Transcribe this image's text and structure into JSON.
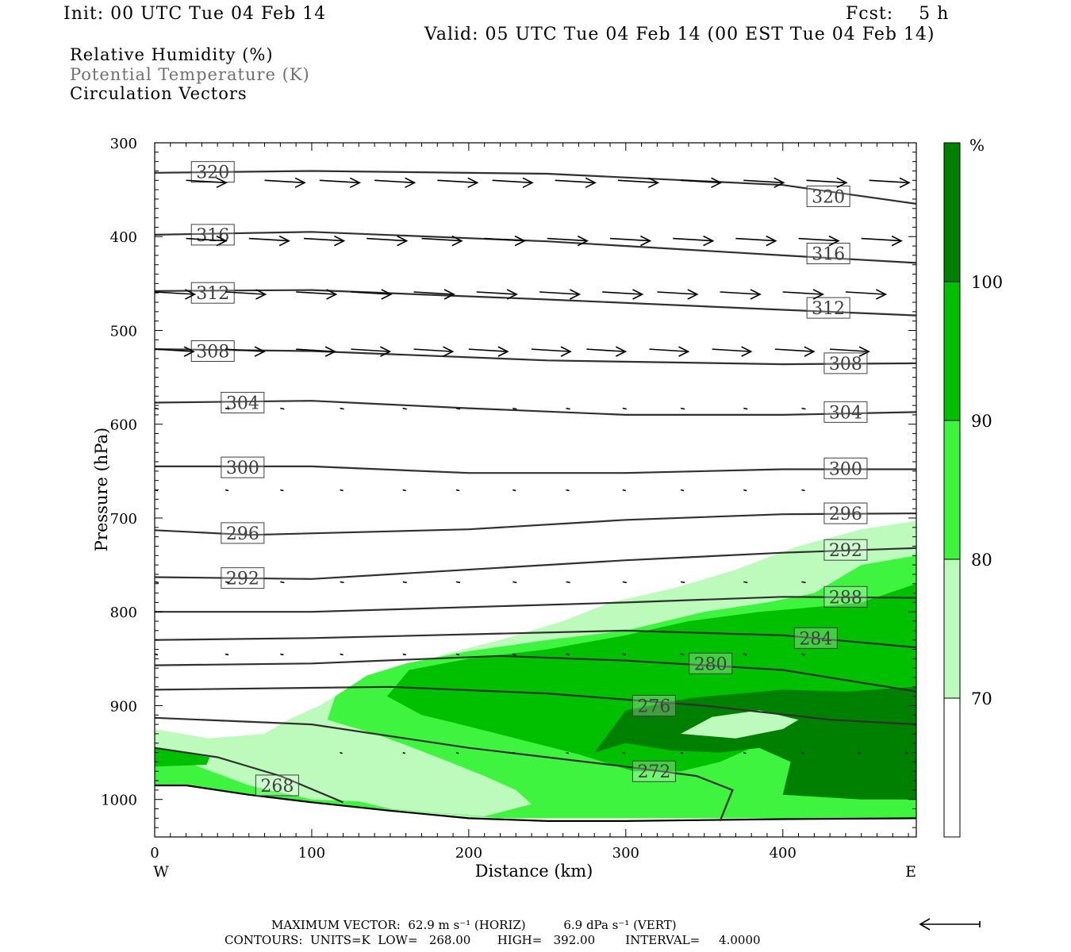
{
  "header": {
    "init": "Init: 00 UTC Tue 04 Feb 14",
    "fcst": "Fcst:    5 h",
    "valid": "Valid: 05 UTC Tue 04 Feb 14 (00 EST Tue 04 Feb 14)"
  },
  "legend": {
    "line1": "Relative Humidity (%)",
    "line2": "Potential Temperature (K)",
    "line3": "Circulation Vectors",
    "line2_color": "#707070"
  },
  "footer": {
    "max_vector": "MAXIMUM VECTOR:  62.9 m s⁻¹ (HORIZ)          6.9 dPa s⁻¹ (VERT)",
    "contours": "CONTOURS:  UNITS=K  LOW=   268.00       HIGH=   392.00        INTERVAL=     4.0000"
  },
  "chart_data": {
    "type": "cross-section",
    "xlabel": "Distance (km)",
    "ylabel": "Pressure (hPa)",
    "xlim": [
      0,
      485
    ],
    "ylim": [
      1040,
      300
    ],
    "x_ticks": [
      0,
      100,
      200,
      300,
      400
    ],
    "y_ticks": [
      300,
      400,
      500,
      600,
      700,
      800,
      900,
      1000
    ],
    "x_end_labels": {
      "left": "W",
      "right": "E"
    },
    "colorbar": {
      "unit": "%",
      "levels": [
        70,
        80,
        90,
        100
      ],
      "colors": [
        "#ffffff",
        "#bdfbbd",
        "#3ff43f",
        "#00c000",
        "#008000"
      ]
    },
    "terrain": [
      [
        0,
        985
      ],
      [
        20,
        985
      ],
      [
        60,
        995
      ],
      [
        100,
        1003
      ],
      [
        150,
        1012
      ],
      [
        200,
        1020
      ],
      [
        250,
        1023
      ],
      [
        300,
        1023
      ],
      [
        350,
        1022
      ],
      [
        400,
        1021
      ],
      [
        485,
        1020
      ]
    ],
    "rh_fill": {
      "rh70": [
        [
          0,
          925
        ],
        [
          35,
          935
        ],
        [
          70,
          930
        ],
        [
          85,
          915
        ],
        [
          105,
          900
        ],
        [
          125,
          880
        ],
        [
          150,
          863
        ],
        [
          185,
          845
        ],
        [
          220,
          830
        ],
        [
          260,
          810
        ],
        [
          290,
          790
        ],
        [
          330,
          775
        ],
        [
          370,
          755
        ],
        [
          410,
          730
        ],
        [
          450,
          712
        ],
        [
          485,
          703
        ],
        [
          485,
          1020
        ],
        [
          0,
          1020
        ]
      ],
      "rh80": [
        [
          0,
          945
        ],
        [
          20,
          960
        ],
        [
          60,
          985
        ],
        [
          100,
          1000
        ],
        [
          130,
          1002
        ],
        [
          150,
          1010
        ],
        [
          185,
          1015
        ],
        [
          210,
          1018
        ],
        [
          240,
          1005
        ],
        [
          230,
          990
        ],
        [
          210,
          975
        ],
        [
          180,
          955
        ],
        [
          160,
          942
        ],
        [
          140,
          930
        ],
        [
          110,
          915
        ],
        [
          115,
          890
        ],
        [
          135,
          868
        ],
        [
          160,
          855
        ],
        [
          200,
          842
        ],
        [
          250,
          830
        ],
        [
          300,
          820
        ],
        [
          350,
          800
        ],
        [
          390,
          790
        ],
        [
          420,
          780
        ],
        [
          450,
          750
        ],
        [
          485,
          740
        ],
        [
          485,
          1020
        ],
        [
          220,
          1020
        ],
        [
          0,
          990
        ]
      ],
      "rh90": [
        [
          148,
          890
        ],
        [
          162,
          862
        ],
        [
          200,
          850
        ],
        [
          250,
          840
        ],
        [
          300,
          825
        ],
        [
          340,
          810
        ],
        [
          385,
          800
        ],
        [
          420,
          795
        ],
        [
          450,
          790
        ],
        [
          485,
          770
        ],
        [
          485,
          885
        ],
        [
          460,
          895
        ],
        [
          420,
          912
        ],
        [
          400,
          930
        ],
        [
          380,
          945
        ],
        [
          360,
          960
        ],
        [
          335,
          970
        ],
        [
          305,
          970
        ],
        [
          270,
          952
        ],
        [
          230,
          935
        ],
        [
          190,
          918
        ],
        [
          170,
          910
        ]
      ],
      "rh100": [
        [
          280,
          950
        ],
        [
          300,
          905
        ],
        [
          340,
          892
        ],
        [
          400,
          883
        ],
        [
          440,
          885
        ],
        [
          485,
          880
        ],
        [
          485,
          1000
        ],
        [
          450,
          1000
        ],
        [
          400,
          995
        ],
        [
          405,
          960
        ],
        [
          385,
          945
        ],
        [
          360,
          950
        ],
        [
          330,
          948
        ],
        [
          300,
          940
        ]
      ],
      "rh100b": [
        [
          0,
          945
        ],
        [
          35,
          955
        ],
        [
          33,
          963
        ],
        [
          0,
          965
        ]
      ],
      "rh70_island": [
        [
          335,
          930
        ],
        [
          355,
          912
        ],
        [
          385,
          905
        ],
        [
          410,
          915
        ],
        [
          400,
          925
        ],
        [
          370,
          935
        ]
      ]
    },
    "theta_contours": [
      {
        "label": "320",
        "pts": [
          [
            0,
            332
          ],
          [
            100,
            330
          ],
          [
            250,
            333
          ],
          [
            400,
            345
          ],
          [
            485,
            365
          ]
        ],
        "lab": [
          [
            37,
            331
          ],
          [
            429,
            357
          ]
        ]
      },
      {
        "label": "316",
        "pts": [
          [
            0,
            398
          ],
          [
            100,
            395
          ],
          [
            250,
            405
          ],
          [
            400,
            420
          ],
          [
            485,
            428
          ]
        ],
        "lab": [
          [
            37,
            398
          ],
          [
            429,
            418
          ]
        ]
      },
      {
        "label": "312",
        "pts": [
          [
            0,
            458
          ],
          [
            100,
            457
          ],
          [
            250,
            467
          ],
          [
            400,
            478
          ],
          [
            485,
            484
          ]
        ],
        "lab": [
          [
            37,
            460
          ],
          [
            429,
            476
          ]
        ]
      },
      {
        "label": "308",
        "pts": [
          [
            0,
            520
          ],
          [
            100,
            522
          ],
          [
            250,
            532
          ],
          [
            400,
            536
          ],
          [
            485,
            535
          ]
        ],
        "lab": [
          [
            37,
            522
          ],
          [
            440,
            535
          ]
        ]
      },
      {
        "label": "304",
        "pts": [
          [
            0,
            577
          ],
          [
            100,
            575
          ],
          [
            200,
            583
          ],
          [
            300,
            590
          ],
          [
            400,
            590
          ],
          [
            485,
            587
          ]
        ],
        "lab": [
          [
            56,
            577
          ],
          [
            440,
            587
          ]
        ]
      },
      {
        "label": "300",
        "pts": [
          [
            0,
            645
          ],
          [
            100,
            645
          ],
          [
            200,
            652
          ],
          [
            300,
            652
          ],
          [
            400,
            648
          ],
          [
            485,
            648
          ]
        ],
        "lab": [
          [
            56,
            646
          ],
          [
            440,
            647
          ]
        ]
      },
      {
        "label": "296",
        "pts": [
          [
            0,
            713
          ],
          [
            60,
            718
          ],
          [
            200,
            712
          ],
          [
            300,
            702
          ],
          [
            400,
            696
          ],
          [
            485,
            695
          ]
        ],
        "lab": [
          [
            56,
            716
          ],
          [
            440,
            695
          ]
        ]
      },
      {
        "label": "292",
        "pts": [
          [
            0,
            763
          ],
          [
            100,
            765
          ],
          [
            300,
            745
          ],
          [
            400,
            737
          ],
          [
            485,
            732
          ]
        ],
        "lab": [
          [
            56,
            764
          ],
          [
            440,
            734
          ]
        ]
      },
      {
        "label": "288",
        "pts": [
          [
            0,
            800
          ],
          [
            100,
            800
          ],
          [
            300,
            790
          ],
          [
            400,
            784
          ],
          [
            485,
            785
          ]
        ],
        "lab": [
          [
            440,
            784
          ]
        ]
      },
      {
        "label": "284",
        "pts": [
          [
            0,
            830
          ],
          [
            100,
            828
          ],
          [
            300,
            820
          ],
          [
            400,
            825
          ],
          [
            485,
            838
          ]
        ],
        "lab": [
          [
            421,
            828
          ]
        ]
      },
      {
        "label": "280",
        "pts": [
          [
            0,
            857
          ],
          [
            100,
            855
          ],
          [
            220,
            847
          ],
          [
            300,
            852
          ],
          [
            400,
            862
          ],
          [
            485,
            885
          ]
        ],
        "lab": [
          [
            354,
            855
          ]
        ]
      },
      {
        "label": "276",
        "pts": [
          [
            0,
            883
          ],
          [
            150,
            880
          ],
          [
            250,
            887
          ],
          [
            350,
            900
          ],
          [
            430,
            915
          ],
          [
            485,
            920
          ]
        ],
        "lab": [
          [
            318,
            900
          ]
        ]
      },
      {
        "label": "272",
        "pts": [
          [
            0,
            913
          ],
          [
            100,
            920
          ],
          [
            200,
            945
          ],
          [
            300,
            965
          ],
          [
            345,
            975
          ],
          [
            368,
            990
          ],
          [
            360,
            1023
          ]
        ],
        "lab": [
          [
            318,
            970
          ]
        ]
      },
      {
        "label": "268",
        "pts": [
          [
            0,
            945
          ],
          [
            40,
            955
          ],
          [
            80,
            975
          ],
          [
            120,
            1003
          ]
        ],
        "lab": [
          [
            78,
            985
          ]
        ]
      }
    ],
    "vectors": [
      {
        "p": 340,
        "xs": [
          20,
          70,
          105,
          140,
          180,
          215,
          255,
          295,
          335,
          375,
          415,
          455
        ],
        "u": 0.72
      },
      {
        "p": 402,
        "xs": [
          20,
          60,
          95,
          135,
          170,
          210,
          250,
          290,
          330,
          370,
          410,
          450
        ],
        "u": 0.72
      },
      {
        "p": 459,
        "xs": [
          0,
          45,
          90,
          125,
          165,
          205,
          245,
          285,
          320,
          360,
          400,
          440
        ],
        "u": 0.72
      },
      {
        "p": 520,
        "xs": [
          0,
          45,
          90,
          125,
          165,
          200,
          240,
          275,
          315,
          355,
          395,
          430
        ],
        "u": 0.7
      },
      {
        "p": 583,
        "xs": [
          0,
          45,
          80,
          118,
          158,
          192,
          228,
          262,
          298,
          335,
          375,
          412
        ],
        "u": 0.5,
        "w": 5
      },
      {
        "p": 670,
        "xs": [
          0,
          45,
          80,
          118,
          158,
          192,
          228,
          262,
          298,
          335,
          375,
          412
        ],
        "u": 0.35,
        "w": 4
      },
      {
        "p": 768,
        "xs": [
          0,
          45,
          80,
          118,
          158,
          192,
          228,
          262,
          298,
          335,
          375,
          412
        ],
        "u": 0.25,
        "w": 5
      },
      {
        "p": 845,
        "xs": [
          0,
          45,
          80,
          118,
          158,
          192,
          228,
          262,
          298,
          335,
          375,
          412
        ],
        "u": 0.1,
        "w": 4
      },
      {
        "p": 950,
        "xs": [
          118,
          158,
          192,
          228,
          262,
          298,
          335,
          375,
          412,
          448,
          478
        ],
        "u": 0.1,
        "w": 3
      }
    ],
    "reference_vector": "left-arrow"
  }
}
